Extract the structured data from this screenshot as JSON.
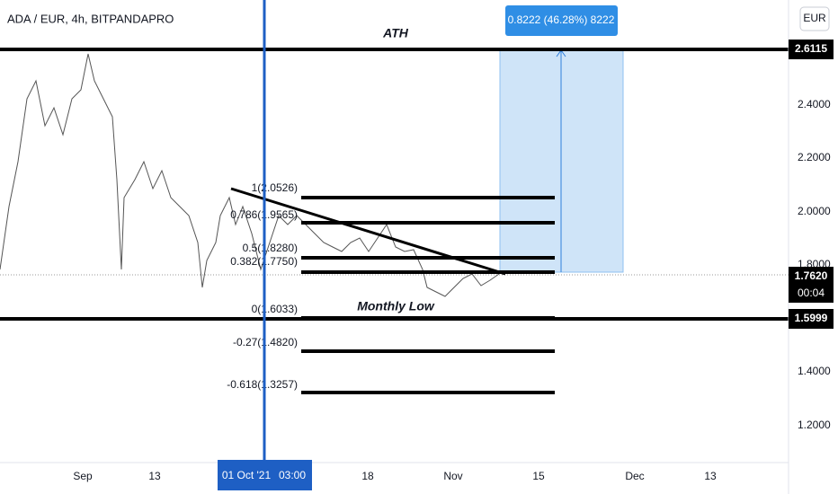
{
  "header": {
    "symbol": "ADA / EUR, 4h, BITPANDAPRO",
    "currency": "EUR"
  },
  "measure_label": "0.8222 (46.28%) 8222",
  "annotations": {
    "ath": "ATH",
    "monthly_low": "Monthly Low"
  },
  "fib_levels": [
    "1(2.0526)",
    "0.786(1.9565)",
    "0.5(1.8280)",
    "0.382(1.7750)",
    "0(1.6033)",
    "-0.27(1.4820)",
    "-0.618(1.3257)"
  ],
  "price_axis": {
    "labels": [
      "2.4000",
      "2.2000",
      "2.0000",
      "1.8000",
      "1.4000",
      "1.2000"
    ],
    "badges": {
      "ath": "2.6115",
      "last": "1.7620",
      "countdown": "00:04",
      "low": "1.5999"
    }
  },
  "time_axis": {
    "labels": [
      "Sep",
      "13",
      "18",
      "Nov",
      "15",
      "Dec",
      "13"
    ],
    "cursor_date": "01 Oct '21",
    "cursor_time": "03:00"
  }
}
